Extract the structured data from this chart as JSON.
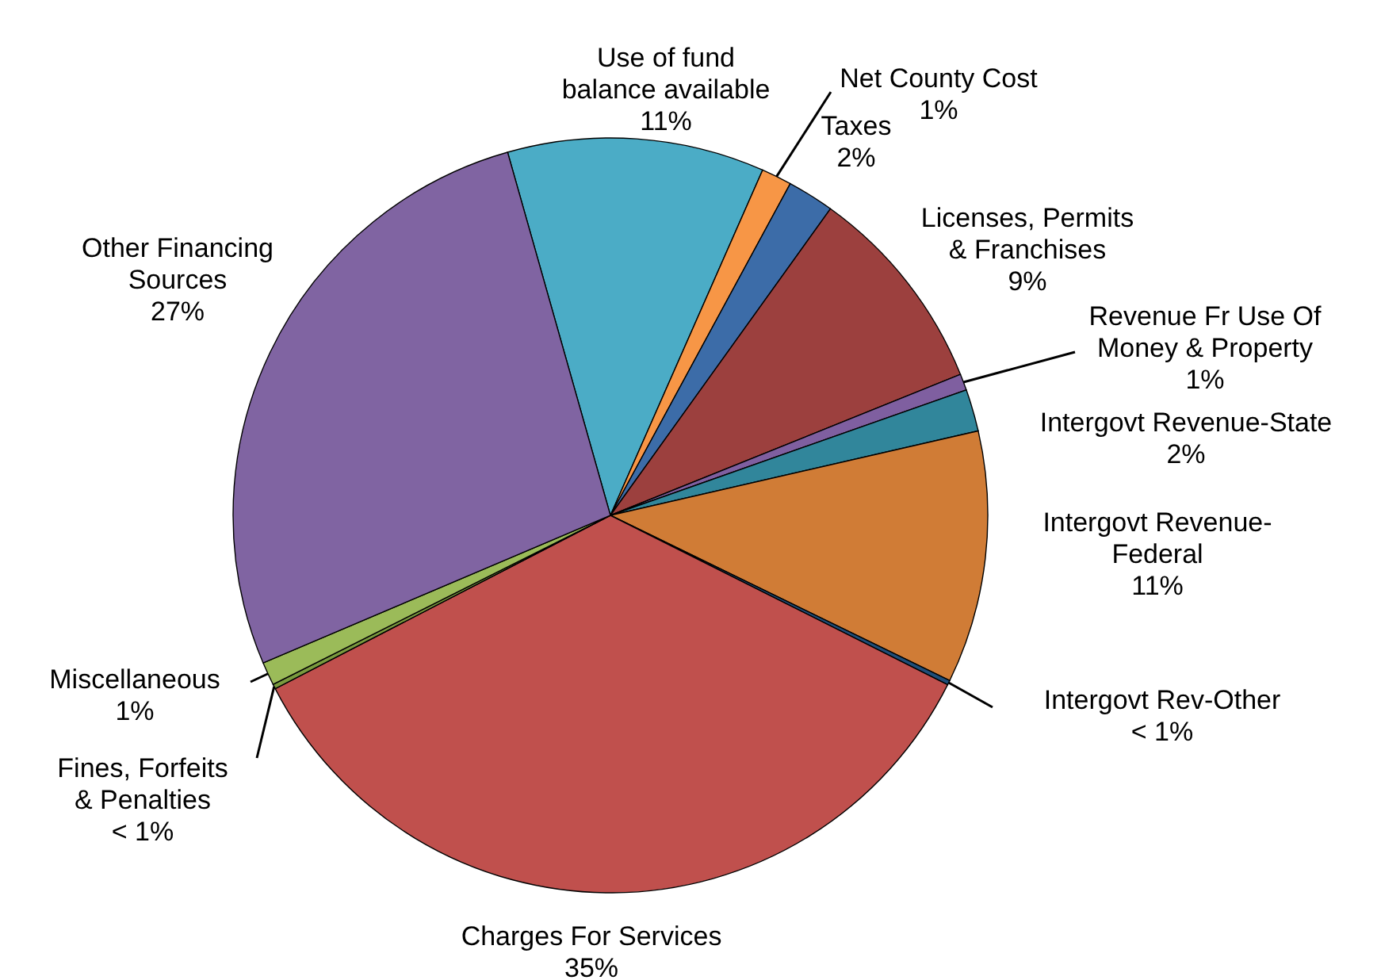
{
  "chart_data": {
    "type": "pie",
    "categories": [
      "Use of fund balance available",
      "Net County Cost",
      "Taxes",
      "Licenses, Permits & Franchises",
      "Revenue Fr Use Of Money & Property",
      "Intergovt Revenue-State",
      "Intergovt Revenue-Federal",
      "Intergovt Rev-Other",
      "Charges For Services",
      "Fines, Forfeits & Penalties",
      "Miscellaneous",
      "Other Financing Sources"
    ],
    "values": [
      11,
      1.3,
      2,
      9,
      0.7,
      1.8,
      10.8,
      0.2,
      35,
      0.2,
      1,
      27
    ],
    "colors": [
      "#4bacc6",
      "#f79646",
      "#3c6ca8",
      "#9c403e",
      "#7f5fa0",
      "#31869b",
      "#d07c36",
      "#1f4e79",
      "#c0504d",
      "#7a9a3e",
      "#9bbb59",
      "#8064a2"
    ],
    "value_labels": [
      "11%",
      "1%",
      "2%",
      "9%",
      "1%",
      "2%",
      "11%",
      "< 1%",
      "35%",
      "< 1%",
      "1%",
      "27%"
    ]
  }
}
